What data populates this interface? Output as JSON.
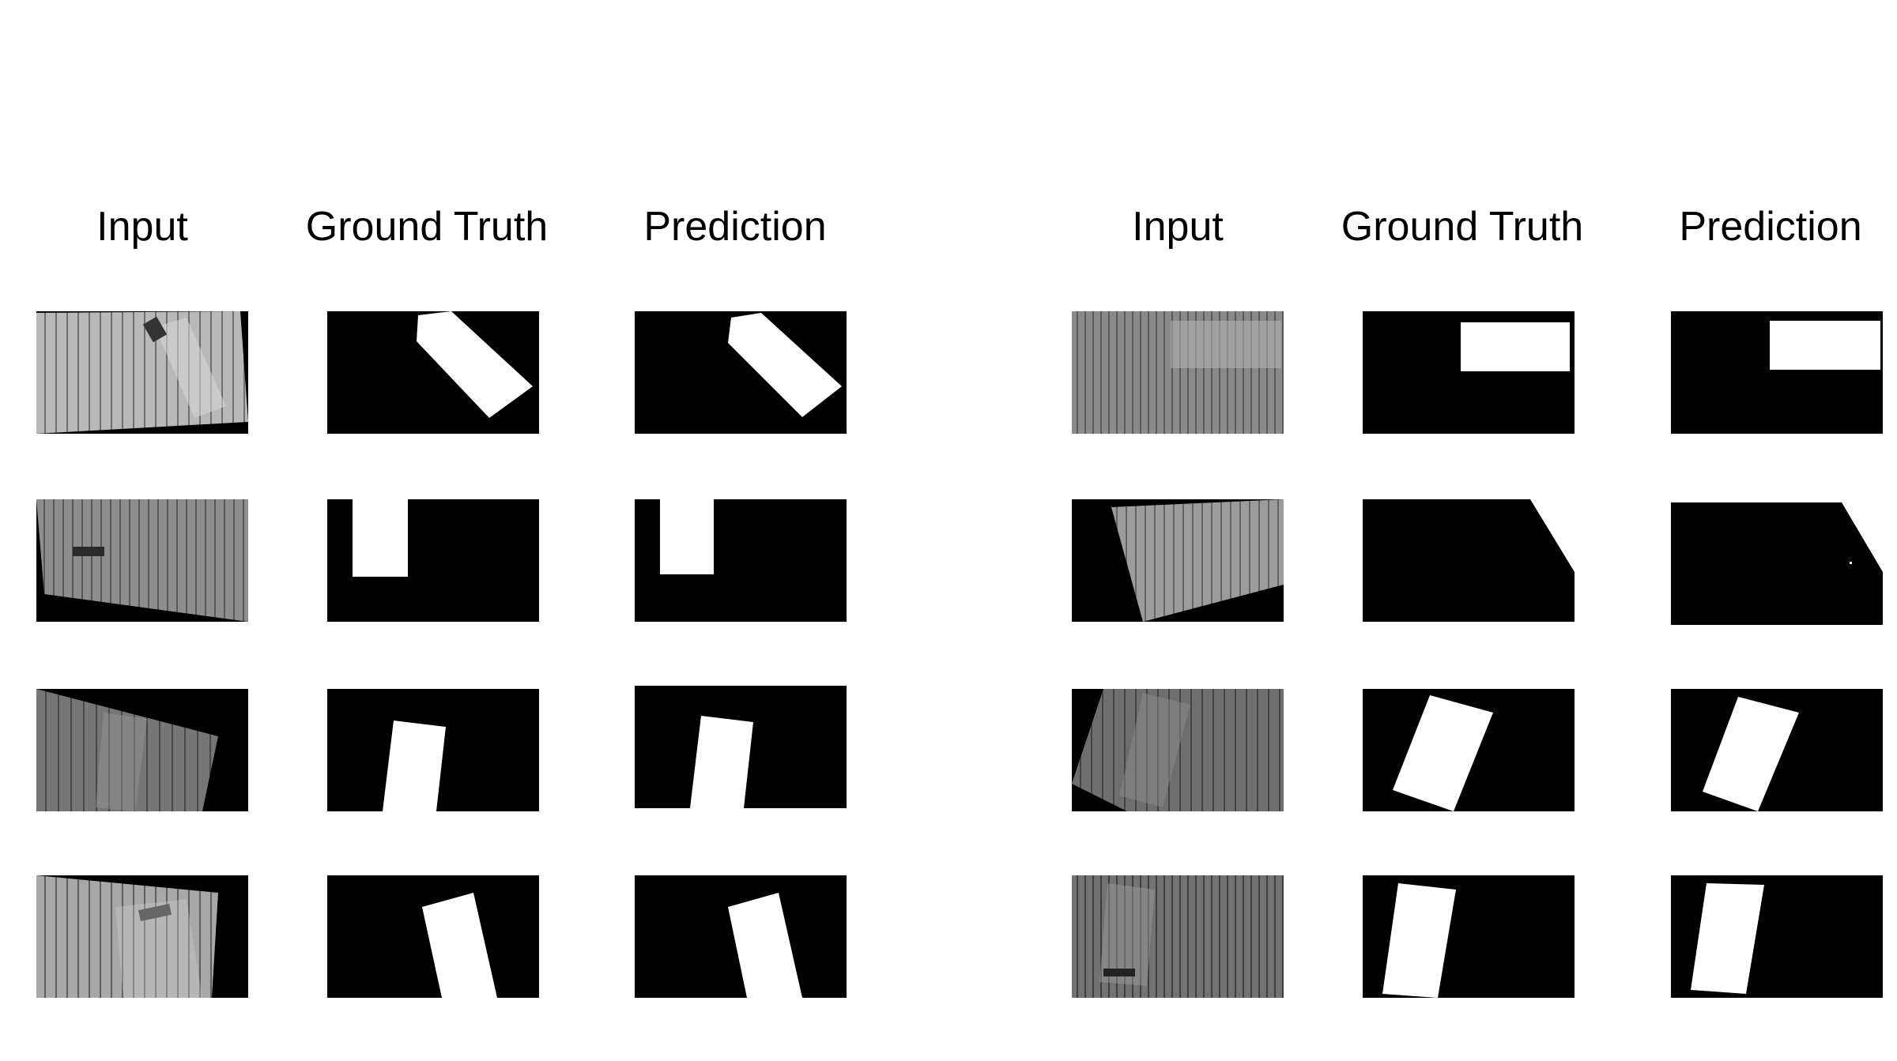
{
  "panels": [
    {
      "headers": {
        "input": "Input",
        "ground_truth": "Ground Truth",
        "prediction": "Prediction"
      }
    },
    {
      "headers": {
        "input": "Input",
        "ground_truth": "Ground Truth",
        "prediction": "Prediction"
      }
    }
  ]
}
